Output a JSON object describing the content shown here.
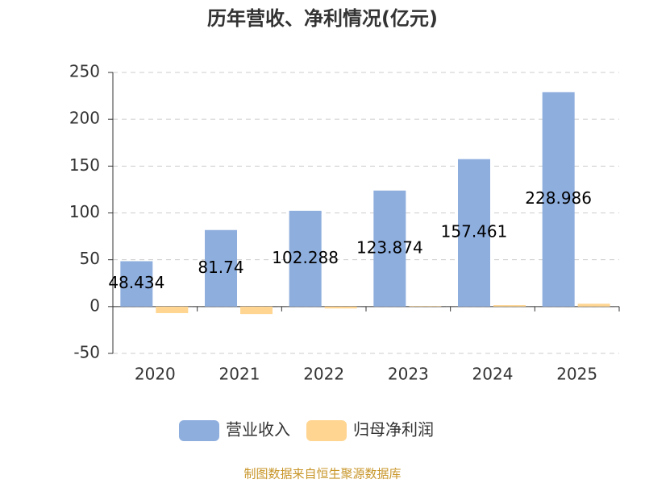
{
  "chart_data": {
    "type": "bar",
    "title": "历年营收、净利情况(亿元)",
    "categories": [
      "2020",
      "2021",
      "2022",
      "2023",
      "2024",
      "2025"
    ],
    "series": [
      {
        "name": "营业收入",
        "color": "#8eaede",
        "values": [
          48.434,
          81.74,
          102.288,
          123.874,
          157.461,
          228.986
        ]
      },
      {
        "name": "归母净利润",
        "color": "#ffd591",
        "values": [
          -7,
          -8,
          -2,
          0.5,
          1.5,
          3
        ]
      }
    ],
    "ylim": [
      -50,
      250
    ],
    "yticks": [
      -50,
      0,
      50,
      100,
      150,
      200,
      250
    ],
    "grid": true,
    "source": "制图数据来自恒生聚源数据库"
  }
}
